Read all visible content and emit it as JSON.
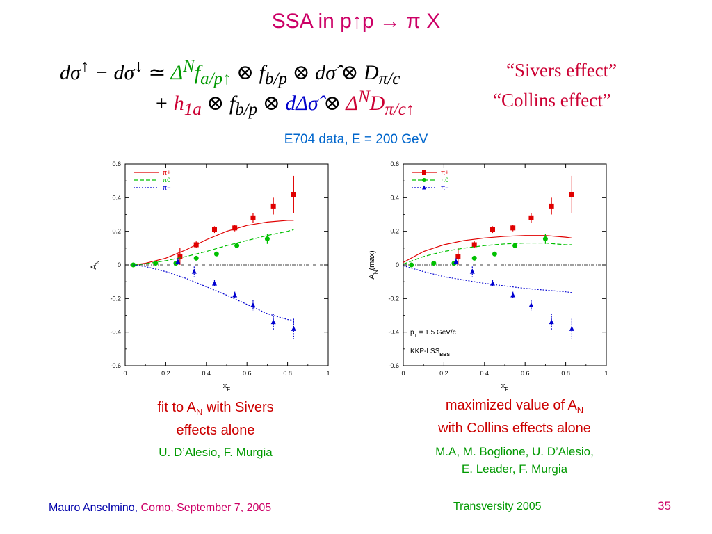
{
  "slide": {
    "title": "SSA in p↑p → π X",
    "subtitle": "E704 data, E = 200 GeV",
    "formula": {
      "line1_label": "“Sivers effect”",
      "line2_label": "“Collins effect”"
    },
    "captions": {
      "left": {
        "line1_pre": "fit to A",
        "line1_sub": "N",
        "line1_post": " with Sivers",
        "line2": "effects alone",
        "authors": "U. D’Alesio, F. Murgia"
      },
      "right": {
        "line1_pre": "maximized value of A",
        "line1_sub": "N",
        "line2": "with Collins effects alone",
        "authors_line1": "M.A, M. Boglione, U. D’Alesio,",
        "authors_line2": "E. Leader, F. Murgia"
      }
    },
    "footer": {
      "author": "Mauro Anselmino,",
      "place_date": " Como, September 7, 2005",
      "event": "Transversity 2005",
      "page": "35"
    }
  },
  "colors": {
    "pi_plus": "#e00000",
    "pi_zero": "#00c000",
    "pi_minus": "#0000d0"
  },
  "chart_data": [
    {
      "type": "scatter",
      "panel": "left",
      "xlabel": "xF",
      "ylabel": "AN",
      "xlim": [
        0,
        1
      ],
      "ylim": [
        -0.6,
        0.6
      ],
      "xticks": [
        "0",
        "0.2",
        "0.4",
        "0.6",
        "0.8",
        "1"
      ],
      "yticks": [
        "-0.6",
        "-0.4",
        "-0.2",
        "0",
        "0.2",
        "0.4",
        "0.6"
      ],
      "legend": [
        "π+",
        "π0",
        "π−"
      ],
      "legend_markers": false,
      "legend_position": "top-left",
      "series": [
        {
          "name": "π+",
          "color": "#e00000",
          "marker": "square",
          "line": "solid",
          "x": [
            0.27,
            0.35,
            0.44,
            0.54,
            0.63,
            0.73,
            0.83
          ],
          "y": [
            0.05,
            0.12,
            0.21,
            0.22,
            0.28,
            0.35,
            0.42
          ],
          "err": [
            0.05,
            0.02,
            0.02,
            0.02,
            0.03,
            0.05,
            0.11
          ],
          "curve_x": [
            0.04,
            0.1,
            0.2,
            0.3,
            0.4,
            0.5,
            0.6,
            0.7,
            0.8,
            0.83
          ],
          "curve_y": [
            0.0,
            0.01,
            0.04,
            0.09,
            0.15,
            0.2,
            0.235,
            0.255,
            0.265,
            0.265
          ]
        },
        {
          "name": "π0",
          "color": "#00c000",
          "marker": "circle",
          "line": "dashed",
          "x": [
            0.04,
            0.15,
            0.25,
            0.35,
            0.45,
            0.55,
            0.7
          ],
          "y": [
            0.0,
            0.01,
            0.01,
            0.04,
            0.065,
            0.115,
            0.155
          ],
          "err": [
            0.005,
            0.005,
            0.01,
            0.01,
            0.01,
            0.01,
            0.03
          ],
          "curve_x": [
            0.04,
            0.1,
            0.2,
            0.3,
            0.4,
            0.5,
            0.6,
            0.7,
            0.8,
            0.83
          ],
          "curve_y": [
            0.0,
            0.007,
            0.025,
            0.05,
            0.08,
            0.115,
            0.145,
            0.175,
            0.2,
            0.21
          ]
        },
        {
          "name": "π−",
          "color": "#0000d0",
          "marker": "triangle",
          "line": "dotted",
          "x": [
            0.26,
            0.34,
            0.44,
            0.54,
            0.63,
            0.73,
            0.83
          ],
          "y": [
            0.02,
            -0.04,
            -0.11,
            -0.18,
            -0.24,
            -0.34,
            -0.38
          ],
          "err": [
            0.02,
            0.03,
            0.02,
            0.02,
            0.03,
            0.05,
            0.06
          ],
          "curve_x": [
            0.04,
            0.1,
            0.2,
            0.3,
            0.4,
            0.5,
            0.6,
            0.7,
            0.8,
            0.83
          ],
          "curve_y": [
            0.0,
            -0.01,
            -0.04,
            -0.08,
            -0.13,
            -0.18,
            -0.235,
            -0.29,
            -0.325,
            -0.33
          ]
        }
      ]
    },
    {
      "type": "scatter",
      "panel": "right",
      "xlabel": "xF",
      "ylabel": "AN(max)",
      "xlim": [
        0,
        1
      ],
      "ylim": [
        -0.6,
        0.6
      ],
      "xticks": [
        "0",
        "0.2",
        "0.4",
        "0.6",
        "0.8",
        "1"
      ],
      "yticks": [
        "-0.6",
        "-0.4",
        "-0.2",
        "0",
        "0.2",
        "0.4",
        "0.6"
      ],
      "legend": [
        "π+",
        "π0",
        "π−"
      ],
      "legend_markers": true,
      "legend_position": "top-left",
      "annotations": {
        "pt": "pT = 1.5 GeV/c",
        "ff": "KKP-LSSBBS"
      },
      "series": [
        {
          "name": "π+",
          "color": "#e00000",
          "marker": "square",
          "line": "solid",
          "x": [
            0.27,
            0.35,
            0.44,
            0.54,
            0.63,
            0.73,
            0.83
          ],
          "y": [
            0.05,
            0.12,
            0.21,
            0.22,
            0.28,
            0.35,
            0.42
          ],
          "err": [
            0.05,
            0.02,
            0.02,
            0.02,
            0.03,
            0.05,
            0.11
          ],
          "curve_x": [
            0.0,
            0.1,
            0.2,
            0.3,
            0.4,
            0.5,
            0.6,
            0.7,
            0.8,
            0.83
          ],
          "curve_y": [
            0.015,
            0.08,
            0.12,
            0.145,
            0.16,
            0.17,
            0.175,
            0.175,
            0.165,
            0.16
          ]
        },
        {
          "name": "π0",
          "color": "#00c000",
          "marker": "circle",
          "line": "dashed",
          "x": [
            0.04,
            0.15,
            0.25,
            0.35,
            0.45,
            0.55,
            0.7
          ],
          "y": [
            0.0,
            0.01,
            0.01,
            0.04,
            0.065,
            0.115,
            0.155
          ],
          "err": [
            0.005,
            0.005,
            0.01,
            0.01,
            0.01,
            0.01,
            0.03
          ],
          "curve_x": [
            0.0,
            0.1,
            0.2,
            0.3,
            0.4,
            0.5,
            0.6,
            0.7,
            0.8,
            0.83
          ],
          "curve_y": [
            0.005,
            0.05,
            0.08,
            0.1,
            0.115,
            0.125,
            0.13,
            0.13,
            0.12,
            0.12
          ]
        },
        {
          "name": "π−",
          "color": "#0000d0",
          "marker": "triangle",
          "line": "dotted",
          "x": [
            0.26,
            0.34,
            0.44,
            0.54,
            0.63,
            0.73,
            0.83
          ],
          "y": [
            0.02,
            -0.04,
            -0.11,
            -0.18,
            -0.24,
            -0.34,
            -0.38
          ],
          "err": [
            0.02,
            0.03,
            0.02,
            0.02,
            0.03,
            0.05,
            0.06
          ],
          "curve_x": [
            0.0,
            0.1,
            0.2,
            0.3,
            0.4,
            0.5,
            0.6,
            0.7,
            0.8,
            0.83
          ],
          "curve_y": [
            -0.005,
            -0.04,
            -0.07,
            -0.09,
            -0.11,
            -0.125,
            -0.14,
            -0.15,
            -0.16,
            -0.165
          ]
        }
      ]
    }
  ]
}
